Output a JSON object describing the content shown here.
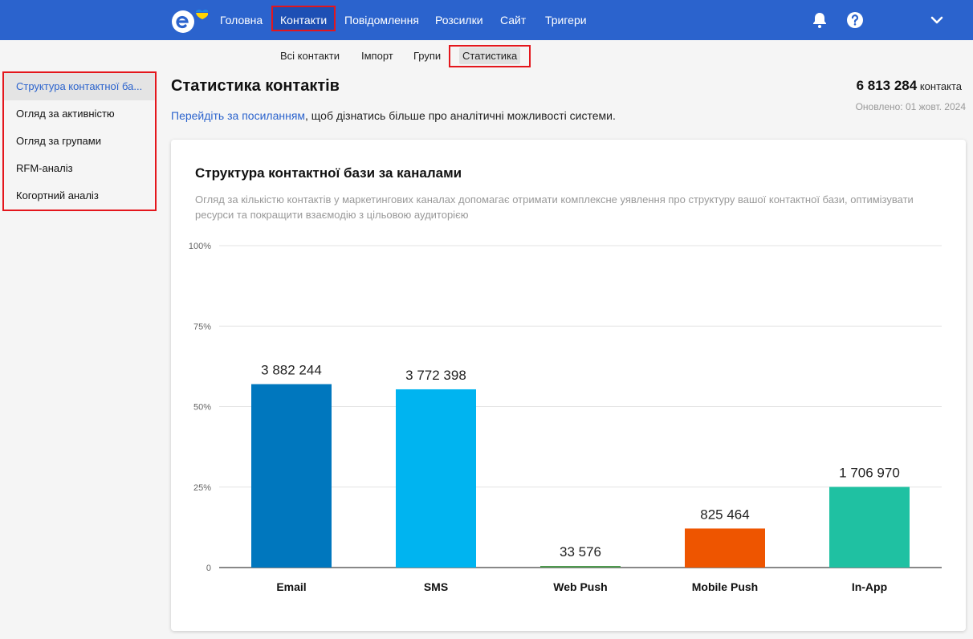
{
  "header": {
    "nav": [
      {
        "label": "Головна"
      },
      {
        "label": "Контакти"
      },
      {
        "label": "Повідомлення"
      },
      {
        "label": "Розсилки"
      },
      {
        "label": "Сайт"
      },
      {
        "label": "Тригери"
      }
    ],
    "active_nav": "Контакти",
    "icons": [
      "bell-icon",
      "help-icon",
      "chevron-down-icon"
    ],
    "brand_color": "#2b63cd"
  },
  "subnav": {
    "items": [
      {
        "label": "Всі контакти"
      },
      {
        "label": "Імпорт"
      },
      {
        "label": "Групи"
      },
      {
        "label": "Статистика"
      }
    ],
    "active": "Статистика"
  },
  "sidebar": {
    "items": [
      {
        "label": "Структура контактної ба..."
      },
      {
        "label": "Огляд за активністю"
      },
      {
        "label": "Огляд за групами"
      },
      {
        "label": "RFM-аналіз"
      },
      {
        "label": "Когортний аналіз"
      }
    ],
    "active_index": 0
  },
  "page": {
    "title": "Статистика контактів",
    "link_text": "Перейдіть за посиланням",
    "desc_rest": ", щоб дізнатись більше про аналітичні можливості системи.",
    "total_value": "6 813 284",
    "total_unit": "контакта",
    "updated": "Оновлено: 01 жовт. 2024"
  },
  "card": {
    "title": "Структура контактної бази за каналами",
    "description": "Огляд за кількістю контактів у маркетингових каналах допомагає отримати комплексне уявлення про структуру вашої контактної бази, оптимізувати ресурси та покращити взаємодію з цільовою аудиторією"
  },
  "chart_data": {
    "type": "bar",
    "categories": [
      "Email",
      "SMS",
      "Web Push",
      "Mobile Push",
      "In-App"
    ],
    "values": [
      3882244,
      3772398,
      33576,
      825464,
      1706970
    ],
    "data_labels": [
      "3 882 244",
      "3 772 398",
      "33 576",
      "825 464",
      "1 706 970"
    ],
    "percent_of_total": [
      56.98,
      55.37,
      0.49,
      12.12,
      25.05
    ],
    "colors": [
      "#0077be",
      "#00b4f0",
      "#4f9a4f",
      "#ee5500",
      "#1fc1a2"
    ],
    "y_ticks": [
      "0",
      "25%",
      "50%",
      "75%",
      "100%"
    ],
    "ylim": [
      0,
      100
    ],
    "grid": true,
    "legend": "none"
  }
}
